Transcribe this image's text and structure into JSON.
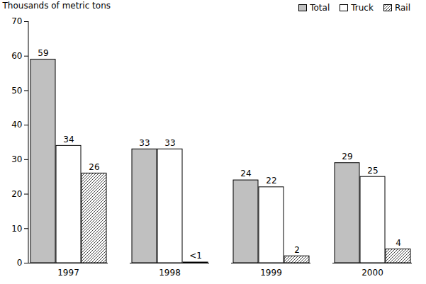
{
  "chart_data": {
    "type": "bar",
    "y_label": "Thousands of metric tons",
    "categories": [
      "1997",
      "1998",
      "1999",
      "2000"
    ],
    "series": [
      {
        "name": "Total",
        "color": "#c0c0c0",
        "values": [
          59,
          33,
          24,
          29
        ]
      },
      {
        "name": "Truck",
        "color": "#ffffff",
        "values": [
          34,
          33,
          22,
          25
        ]
      },
      {
        "name": "Rail",
        "color": "#404040",
        "line_style": "hatched",
        "values": [
          26,
          0.2,
          2,
          4
        ],
        "value_labels": [
          "26",
          "<1",
          "2",
          "4"
        ]
      }
    ],
    "ylim": [
      0,
      70
    ],
    "yticks": [
      0,
      10,
      20,
      30,
      40,
      50,
      60,
      70
    ],
    "grid": false,
    "data_labels": true,
    "legend": "top right"
  }
}
